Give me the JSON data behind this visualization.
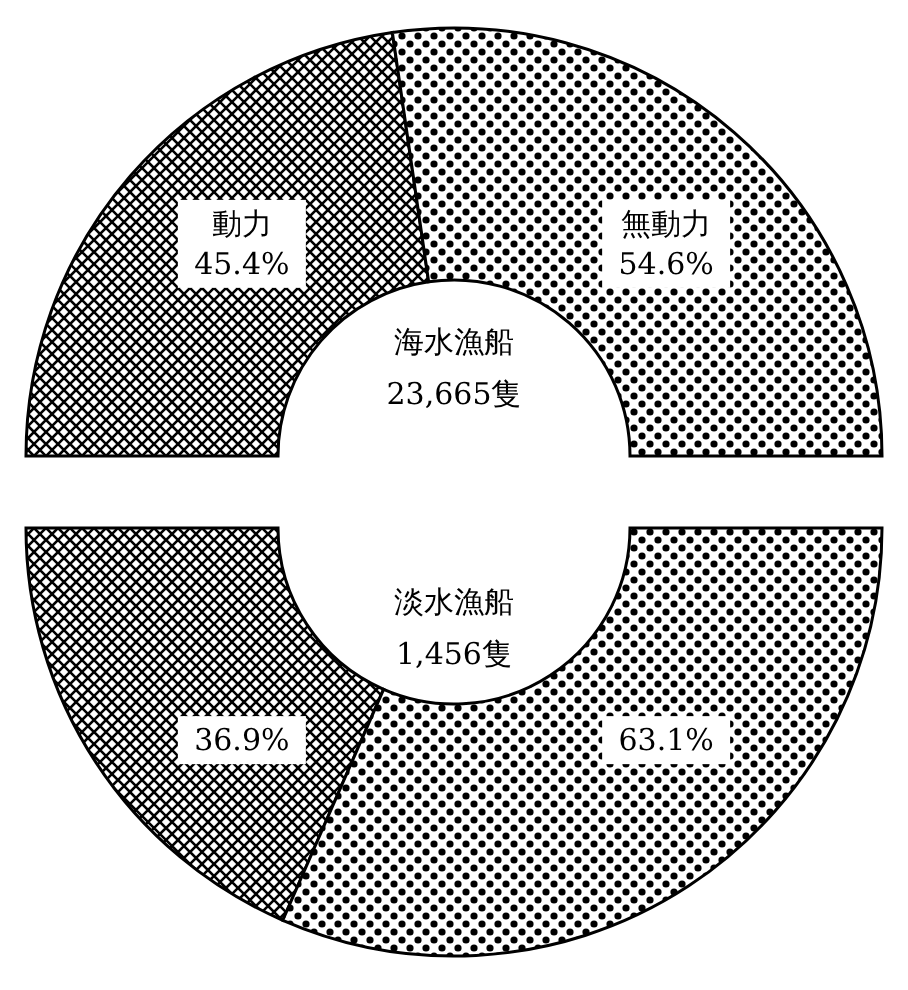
{
  "chart_data": [
    {
      "type": "donut",
      "title": "海水漁船",
      "subtitle": "23,665隻",
      "categories": [
        "動力",
        "無動力"
      ],
      "values": [
        45.4,
        54.6
      ],
      "value_labels": [
        "45.4%",
        "54.6%"
      ],
      "colors": [
        "#000000",
        "#000000"
      ]
    },
    {
      "type": "donut",
      "title": "淡水漁船",
      "subtitle": "1,456隻",
      "categories": [
        null,
        null
      ],
      "values": [
        36.9,
        63.1
      ],
      "value_labels": [
        "36.9%",
        "63.1%"
      ],
      "colors": [
        "#000000",
        "#000000"
      ]
    }
  ]
}
